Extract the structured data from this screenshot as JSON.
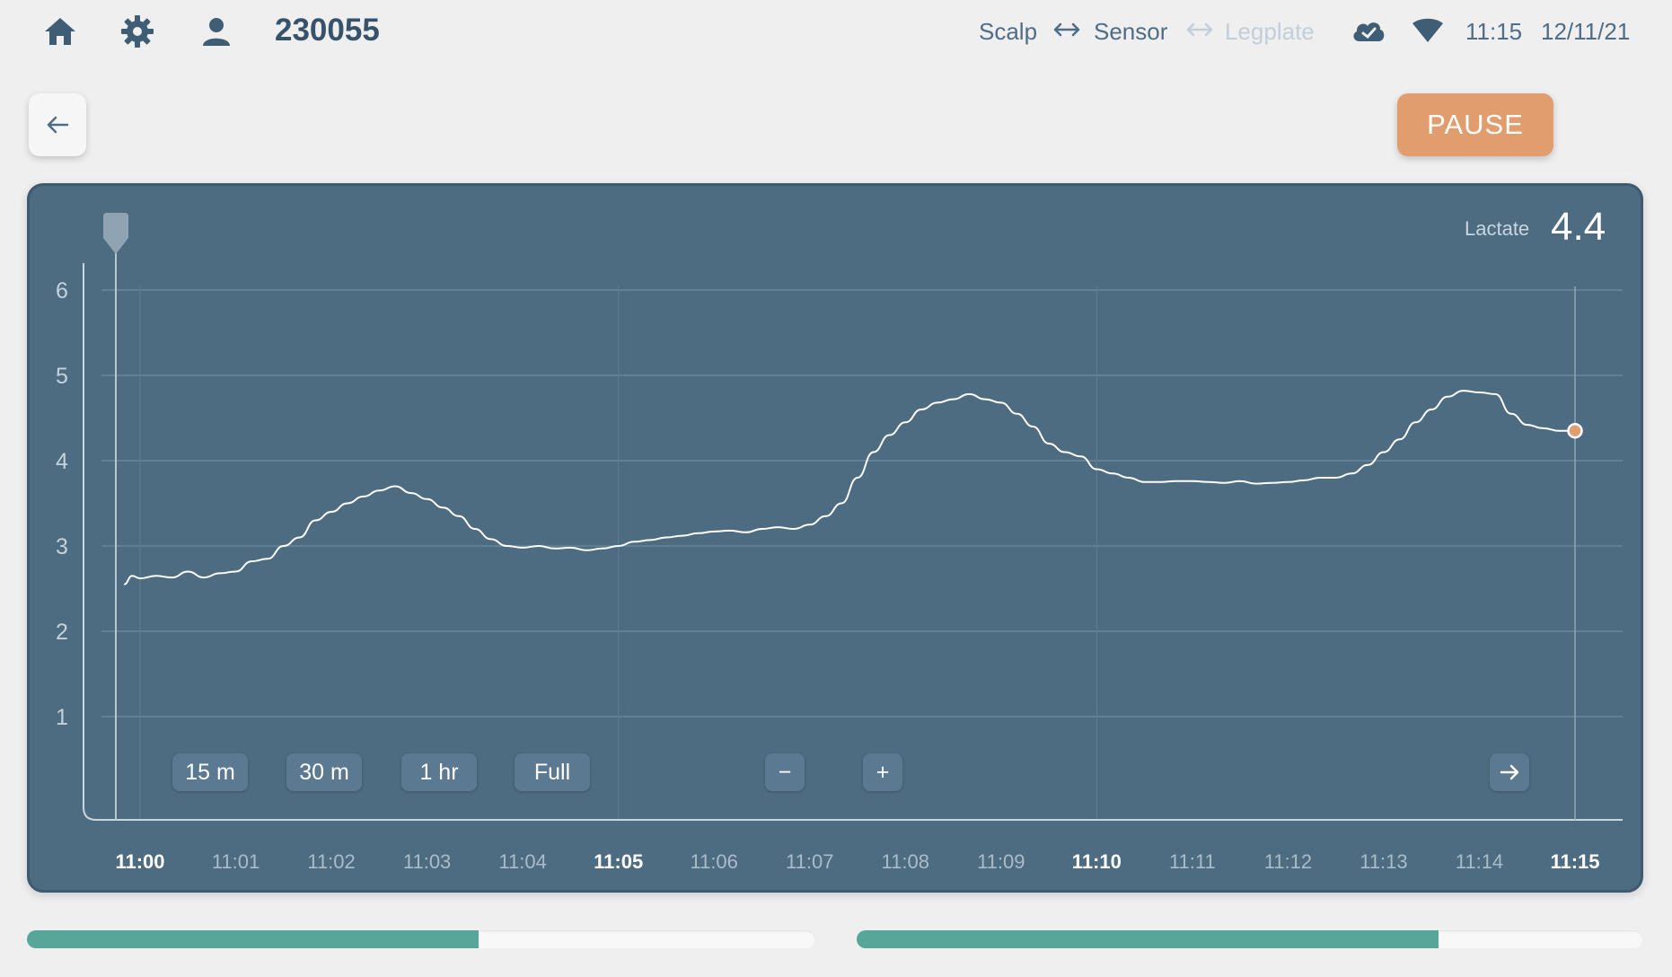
{
  "header": {
    "patient_id": "230055",
    "connection": {
      "scalp": "Scalp",
      "sensor": "Sensor",
      "legplate": "Legplate"
    },
    "time": "11:15",
    "date": "12/11/21",
    "icons": [
      "home-icon",
      "gear-icon",
      "user-icon",
      "cloud-check-icon",
      "wifi-icon"
    ]
  },
  "toolbar": {
    "back_icon": "arrow-left-icon",
    "pause_label": "PAUSE"
  },
  "readout": {
    "label": "Lactate",
    "value": "4.4"
  },
  "range_buttons": {
    "m15": "15 m",
    "m30": "30 m",
    "hr1": "1 hr",
    "full": "Full",
    "zoom_out": "−",
    "zoom_in": "+"
  },
  "colors": {
    "panel": "#4d6b81",
    "accent_orange": "#e29d6e",
    "progress_teal": "#57a69a",
    "line": "#ffffff"
  },
  "chart_data": {
    "type": "line",
    "xlabel": "",
    "ylabel": "",
    "xlim": [
      "11:00",
      "11:15"
    ],
    "ylim": [
      0,
      6.5
    ],
    "yticks": [
      1,
      2,
      3,
      4,
      5,
      6
    ],
    "xticks": [
      "11:00",
      "11:01",
      "11:02",
      "11:03",
      "11:04",
      "11:05",
      "11:06",
      "11:07",
      "11:08",
      "11:09",
      "11:10",
      "11:11",
      "11:12",
      "11:13",
      "11:14",
      "11:15"
    ],
    "bold_xticks": [
      "11:00",
      "11:05",
      "11:10",
      "11:15"
    ],
    "grid": true,
    "series": [
      {
        "x": [
          "10:59:50",
          "10:59:55",
          "11:00:00",
          "11:00:10",
          "11:00:20",
          "11:00:30",
          "11:00:40",
          "11:00:50",
          "11:01:00",
          "11:01:10",
          "11:01:20",
          "11:01:30",
          "11:01:40",
          "11:01:50",
          "11:02:00",
          "11:02:10",
          "11:02:20",
          "11:02:30",
          "11:02:40",
          "11:02:50",
          "11:03:00",
          "11:03:10",
          "11:03:20",
          "11:03:30",
          "11:03:40",
          "11:03:50",
          "11:04:00",
          "11:04:10",
          "11:04:20",
          "11:04:30",
          "11:04:40",
          "11:04:50",
          "11:05:00",
          "11:05:10",
          "11:05:20",
          "11:05:30",
          "11:05:40",
          "11:05:50",
          "11:06:00",
          "11:06:10",
          "11:06:20",
          "11:06:30",
          "11:06:40",
          "11:06:50",
          "11:07:00",
          "11:07:10",
          "11:07:20",
          "11:07:30",
          "11:07:40",
          "11:07:50",
          "11:08:00",
          "11:08:10",
          "11:08:20",
          "11:08:30",
          "11:08:40",
          "11:08:50",
          "11:09:00",
          "11:09:10",
          "11:09:20",
          "11:09:30",
          "11:09:40",
          "11:09:50",
          "11:10:00",
          "11:10:10",
          "11:10:20",
          "11:10:30",
          "11:10:40",
          "11:10:50",
          "11:11:00",
          "11:11:10",
          "11:11:20",
          "11:11:30",
          "11:11:40",
          "11:11:50",
          "11:12:00",
          "11:12:10",
          "11:12:20",
          "11:12:30",
          "11:12:40",
          "11:12:50",
          "11:13:00",
          "11:13:10",
          "11:13:20",
          "11:13:30",
          "11:13:40",
          "11:13:50",
          "11:14:00",
          "11:14:10",
          "11:14:20",
          "11:14:30",
          "11:14:40",
          "11:14:50",
          "11:15:00"
        ],
        "y": [
          2.55,
          2.65,
          2.62,
          2.65,
          2.63,
          2.7,
          2.63,
          2.68,
          2.7,
          2.82,
          2.85,
          3.0,
          3.1,
          3.3,
          3.4,
          3.5,
          3.58,
          3.65,
          3.7,
          3.62,
          3.55,
          3.45,
          3.35,
          3.2,
          3.08,
          3.0,
          2.98,
          3.0,
          2.97,
          2.98,
          2.95,
          2.97,
          3.0,
          3.05,
          3.07,
          3.1,
          3.12,
          3.15,
          3.17,
          3.18,
          3.16,
          3.2,
          3.22,
          3.2,
          3.25,
          3.35,
          3.5,
          3.8,
          4.1,
          4.3,
          4.45,
          4.6,
          4.68,
          4.72,
          4.78,
          4.72,
          4.68,
          4.55,
          4.4,
          4.2,
          4.1,
          4.05,
          3.9,
          3.85,
          3.8,
          3.75,
          3.75,
          3.76,
          3.76,
          3.75,
          3.74,
          3.76,
          3.73,
          3.74,
          3.75,
          3.77,
          3.8,
          3.8,
          3.85,
          3.95,
          4.1,
          4.25,
          4.45,
          4.6,
          4.75,
          4.82,
          4.8,
          4.78,
          4.55,
          4.42,
          4.38,
          4.35,
          4.35
        ],
        "endpoint": {
          "x": "11:15:00",
          "y": 4.35
        }
      }
    ]
  },
  "progress": {
    "left_fraction": 0.573,
    "right_fraction": 0.74
  }
}
